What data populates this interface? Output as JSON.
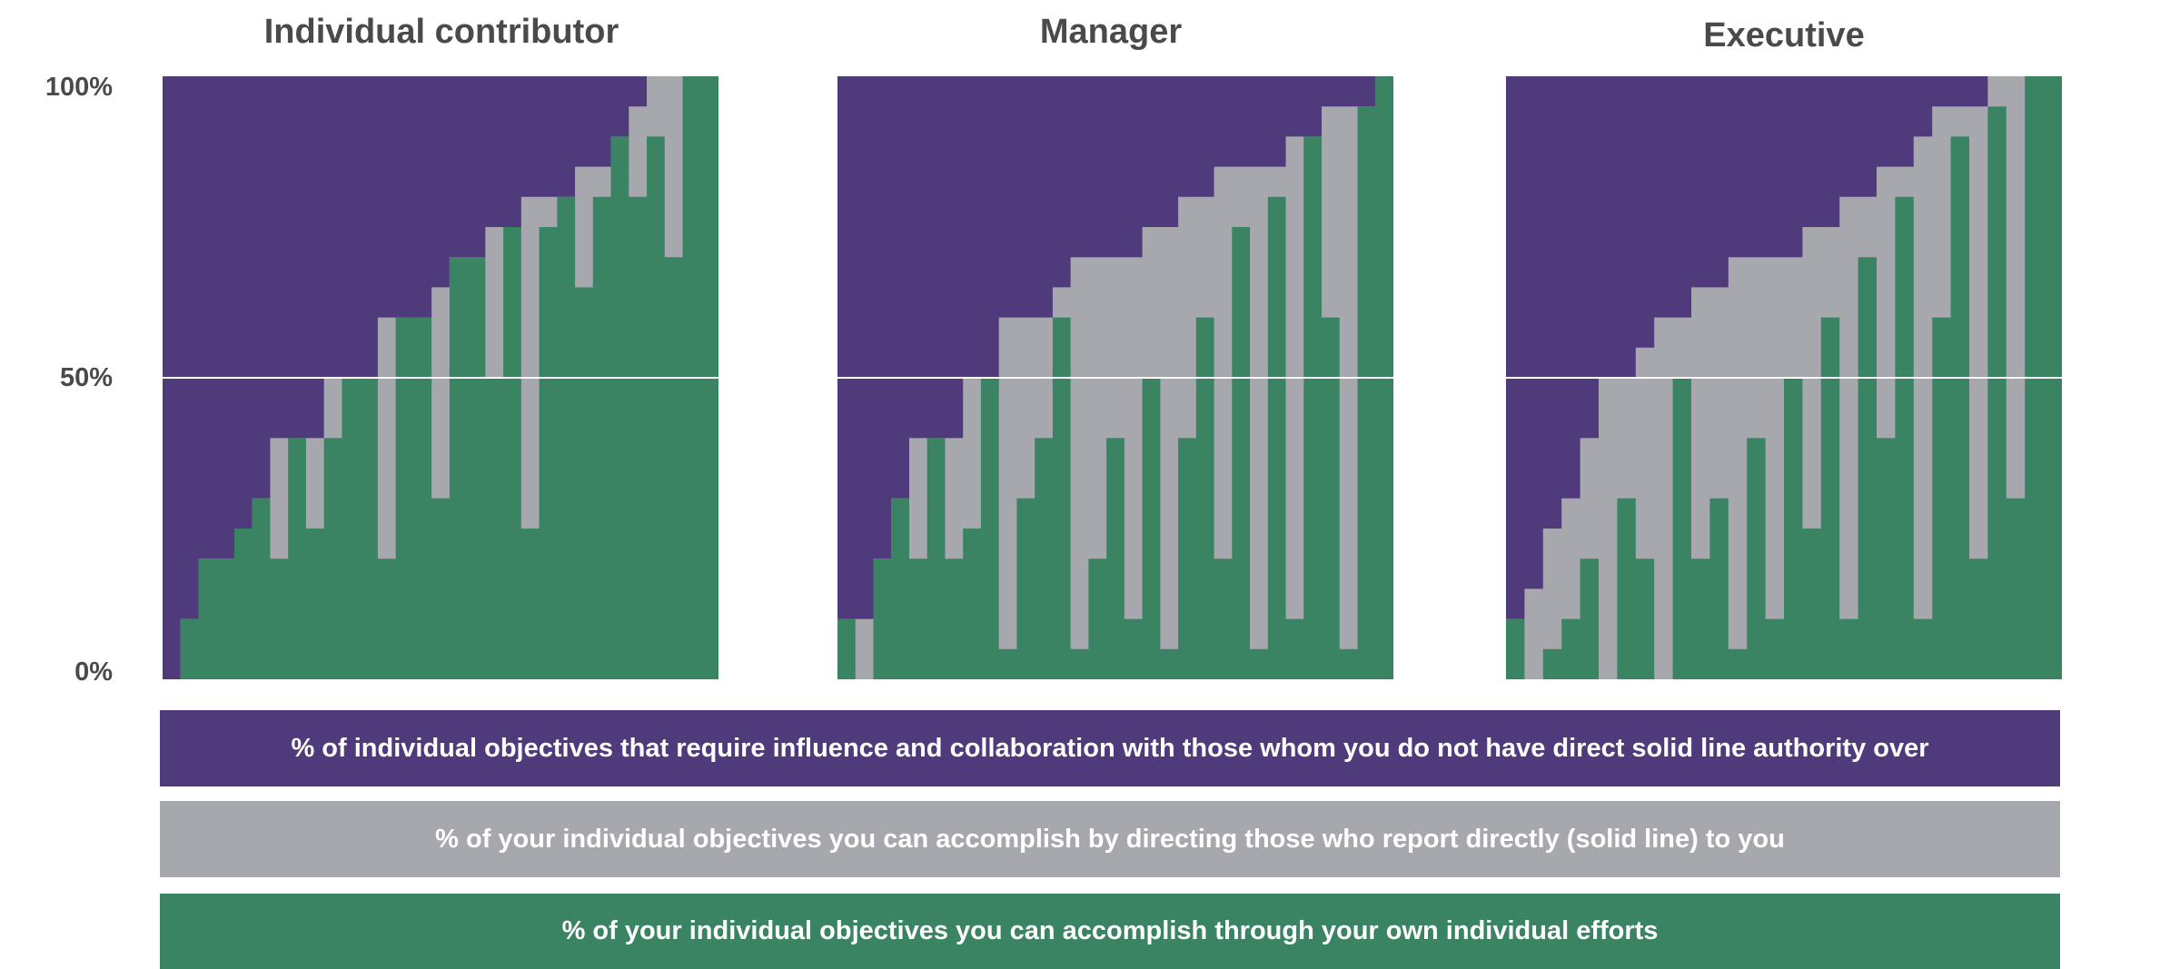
{
  "chart_data": [
    {
      "type": "area",
      "stacked": true,
      "title": "Individual contributor",
      "ylim": [
        0,
        100
      ],
      "yticks": [
        "100%",
        "50%",
        "0%"
      ],
      "grid": "single line at 50%",
      "colors": {
        "influence": "#4f3b7c",
        "direct_reports": "#a6a8ae",
        "own_efforts": "#3a8463"
      },
      "series": [
        {
          "name": "own_efforts",
          "values": [
            0,
            10,
            20,
            20,
            25,
            30,
            20,
            40,
            25,
            40,
            50,
            50,
            20,
            60,
            60,
            30,
            70,
            70,
            50,
            75,
            25,
            75,
            80,
            65,
            80,
            90,
            80,
            90,
            70,
            100,
            100
          ]
        },
        {
          "name": "direct_reports",
          "values": [
            0,
            0,
            0,
            0,
            0,
            0,
            20,
            0,
            15,
            10,
            0,
            0,
            40,
            0,
            0,
            35,
            0,
            0,
            25,
            0,
            55,
            5,
            0,
            20,
            5,
            0,
            15,
            10,
            30,
            0,
            0
          ]
        }
      ]
    },
    {
      "type": "area",
      "stacked": true,
      "title": "Manager",
      "ylim": [
        0,
        100
      ],
      "colors": {
        "influence": "#4f3b7c",
        "direct_reports": "#a6a8ae",
        "own_efforts": "#3a8463"
      },
      "series": [
        {
          "name": "own_efforts",
          "values": [
            10,
            0,
            20,
            30,
            20,
            40,
            20,
            25,
            50,
            5,
            30,
            40,
            60,
            5,
            20,
            40,
            10,
            50,
            5,
            40,
            60,
            20,
            75,
            5,
            80,
            10,
            90,
            60,
            5,
            95,
            100
          ]
        },
        {
          "name": "direct_reports",
          "values": [
            0,
            10,
            0,
            0,
            20,
            0,
            20,
            25,
            0,
            55,
            30,
            20,
            5,
            65,
            50,
            30,
            60,
            25,
            70,
            40,
            20,
            65,
            10,
            80,
            5,
            80,
            0,
            35,
            90,
            0,
            0
          ]
        }
      ]
    },
    {
      "type": "area",
      "stacked": true,
      "title": "Executive",
      "ylim": [
        0,
        100
      ],
      "colors": {
        "influence": "#4f3b7c",
        "direct_reports": "#a6a8ae",
        "own_efforts": "#3a8463"
      },
      "series": [
        {
          "name": "own_efforts",
          "values": [
            10,
            0,
            5,
            10,
            20,
            0,
            30,
            20,
            0,
            50,
            20,
            30,
            5,
            40,
            10,
            50,
            25,
            60,
            10,
            70,
            40,
            80,
            10,
            60,
            90,
            20,
            95,
            30,
            100,
            100
          ]
        },
        {
          "name": "direct_reports",
          "values": [
            0,
            15,
            20,
            20,
            20,
            50,
            20,
            35,
            60,
            10,
            45,
            35,
            65,
            30,
            60,
            20,
            50,
            15,
            70,
            10,
            45,
            5,
            80,
            35,
            5,
            75,
            5,
            70,
            0,
            0
          ]
        }
      ]
    }
  ],
  "legend": [
    {
      "key": "influence",
      "label": "% of individual objectives that require influence and collaboration with those whom you do not have direct solid line authority over",
      "color": "#4f3b7c"
    },
    {
      "key": "direct_reports",
      "label": "% of your individual objectives you can accomplish by directing those who report directly (solid line) to you",
      "color": "#a6a8ae"
    },
    {
      "key": "own_efforts",
      "label": "% of your individual objectives you can accomplish through your own individual efforts",
      "color": "#3a8463"
    }
  ]
}
